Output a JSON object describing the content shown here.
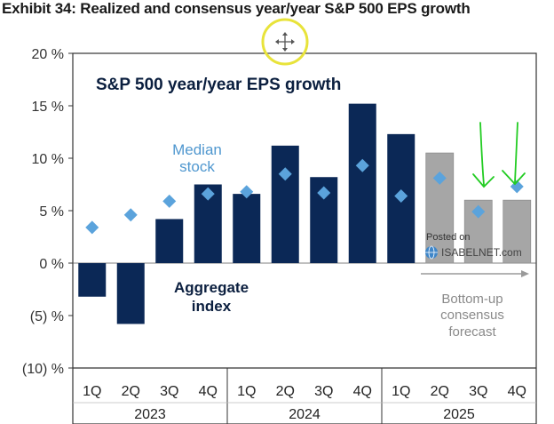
{
  "header": {
    "title": "Exhibit 34: Realized and consensus year/year S&P 500 EPS growth"
  },
  "chart_data": {
    "type": "bar",
    "title": "S&P 500 year/year EPS growth",
    "categories": [
      "1Q",
      "2Q",
      "3Q",
      "4Q",
      "1Q",
      "2Q",
      "3Q",
      "4Q",
      "1Q",
      "2Q",
      "3Q",
      "4Q"
    ],
    "years": [
      {
        "label": "2023",
        "span": 4
      },
      {
        "label": "2024",
        "span": 4
      },
      {
        "label": "2025",
        "span": 4
      }
    ],
    "series": [
      {
        "name": "Aggregate index",
        "values": [
          -3.2,
          -5.8,
          4.2,
          7.5,
          6.6,
          11.2,
          8.2,
          15.2,
          12.3,
          10.5,
          6.0,
          6.0
        ],
        "realized_count": 9
      },
      {
        "name": "Median stock",
        "values": [
          3.4,
          4.6,
          5.9,
          6.6,
          6.8,
          8.5,
          6.7,
          9.3,
          6.4,
          8.1,
          4.9,
          7.3
        ]
      }
    ],
    "ylim": [
      -10,
      20
    ],
    "yticks": [
      {
        "value": 20,
        "label": "20 %"
      },
      {
        "value": 15,
        "label": "15 %"
      },
      {
        "value": 10,
        "label": "10 %"
      },
      {
        "value": 5,
        "label": "5 %"
      },
      {
        "value": 0,
        "label": "0 %"
      },
      {
        "value": -5,
        "label": "(5) %"
      },
      {
        "value": -10,
        "label": "(10) %"
      }
    ],
    "annotations": {
      "median_label": [
        "Median",
        "stock"
      ],
      "aggregate_label": [
        "Aggregate",
        "index"
      ],
      "forecast_label": [
        "Bottom-up",
        "consensus",
        "forecast"
      ],
      "posted_on": "Posted on",
      "source": "ISABELNET.com"
    }
  },
  "colors": {
    "realized_bar": "#0b2856",
    "forecast_bar": "#a6a6a6",
    "median_marker": "#5ba3dc",
    "axis": "#333333",
    "highlight_circle": "#e8e33a",
    "green_marks": "#22cc22"
  }
}
